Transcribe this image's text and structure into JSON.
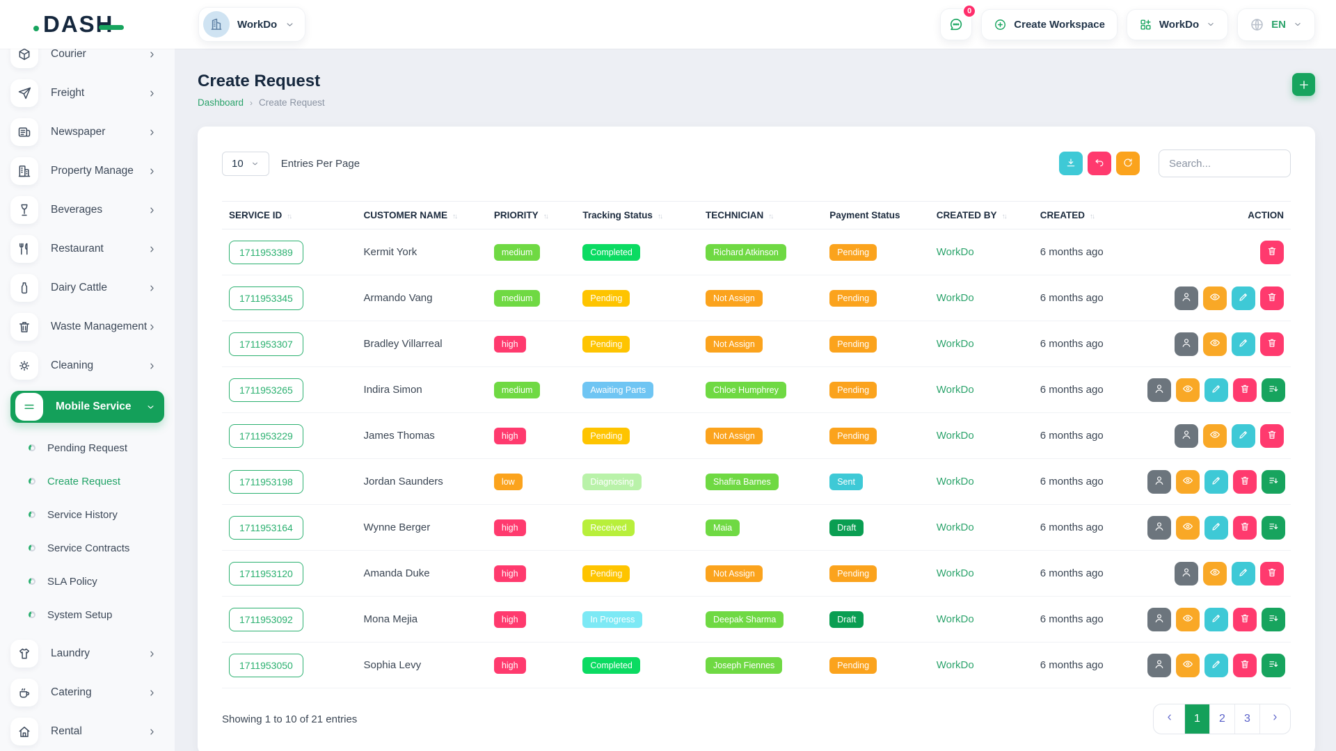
{
  "brand": {
    "logo_text": "DASH"
  },
  "header": {
    "workspace_switcher": {
      "label": "WorkDo",
      "icon": "building-icon"
    },
    "messages_badge": "0",
    "create_workspace_label": "Create Workspace",
    "workspace_menu_label": "WorkDo",
    "language": "EN"
  },
  "sidebar": {
    "items": [
      {
        "label": "Courier",
        "icon": "courier-icon",
        "clipped": true
      },
      {
        "label": "Freight",
        "icon": "freight-icon"
      },
      {
        "label": "Newspaper",
        "icon": "newspaper-icon"
      },
      {
        "label": "Property Manage",
        "icon": "property-icon"
      },
      {
        "label": "Beverages",
        "icon": "beverages-icon"
      },
      {
        "label": "Restaurant",
        "icon": "restaurant-icon"
      },
      {
        "label": "Dairy Cattle",
        "icon": "dairy-icon"
      },
      {
        "label": "Waste Management",
        "icon": "waste-icon"
      },
      {
        "label": "Cleaning",
        "icon": "cleaning-icon"
      },
      {
        "label": "Mobile Service",
        "icon": "menu-icon",
        "active": true,
        "children": [
          {
            "label": "Pending Request"
          },
          {
            "label": "Create Request",
            "active": true
          },
          {
            "label": "Service History"
          },
          {
            "label": "Service Contracts"
          },
          {
            "label": "SLA Policy"
          },
          {
            "label": "System Setup"
          }
        ]
      },
      {
        "label": "Laundry",
        "icon": "laundry-icon"
      },
      {
        "label": "Catering",
        "icon": "catering-icon"
      },
      {
        "label": "Rental",
        "icon": "rental-icon"
      }
    ]
  },
  "page": {
    "title": "Create Request",
    "breadcrumb": {
      "home": "Dashboard",
      "current": "Create Request"
    }
  },
  "toolbar": {
    "entries_value": "10",
    "entries_label": "Entries Per Page",
    "search_placeholder": "Search...",
    "buttons": [
      {
        "name": "download",
        "color": "#3ec9d6"
      },
      {
        "name": "undo",
        "color": "#ff3a6e"
      },
      {
        "name": "refresh",
        "color": "#fba31d"
      }
    ]
  },
  "table": {
    "columns": [
      {
        "label": "SERVICE ID",
        "sortable": true
      },
      {
        "label": "CUSTOMER NAME",
        "sortable": true
      },
      {
        "label": "PRIORITY",
        "sortable": true
      },
      {
        "label": "Tracking Status",
        "sortable": true
      },
      {
        "label": "TECHNICIAN",
        "sortable": true
      },
      {
        "label": "Payment Status",
        "sortable": false
      },
      {
        "label": "CREATED BY",
        "sortable": true
      },
      {
        "label": "CREATED",
        "sortable": true
      },
      {
        "label": "ACTION",
        "sortable": false
      }
    ],
    "rows": [
      {
        "service_id": "1711953389",
        "customer": "Kermit York",
        "priority": {
          "text": "medium",
          "color": "green"
        },
        "tracking": {
          "text": "Completed",
          "color": "spring"
        },
        "technician": {
          "text": "Richard Atkinson",
          "color": "green"
        },
        "payment": {
          "text": "Pending",
          "color": "orange"
        },
        "created_by": "WorkDo",
        "created": "6 months ago",
        "actions": [
          "trash"
        ]
      },
      {
        "service_id": "1711953345",
        "customer": "Armando Vang",
        "priority": {
          "text": "medium",
          "color": "green"
        },
        "tracking": {
          "text": "Pending",
          "color": "yellow"
        },
        "technician": {
          "text": "Not Assign",
          "color": "orange"
        },
        "payment": {
          "text": "Pending",
          "color": "orange"
        },
        "created_by": "WorkDo",
        "created": "6 months ago",
        "actions": [
          "user",
          "eye",
          "edit",
          "trash"
        ]
      },
      {
        "service_id": "1711953307",
        "customer": "Bradley Villarreal",
        "priority": {
          "text": "high",
          "color": "pink"
        },
        "tracking": {
          "text": "Pending",
          "color": "yellow"
        },
        "technician": {
          "text": "Not Assign",
          "color": "orange"
        },
        "payment": {
          "text": "Pending",
          "color": "orange"
        },
        "created_by": "WorkDo",
        "created": "6 months ago",
        "actions": [
          "user",
          "eye",
          "edit",
          "trash"
        ]
      },
      {
        "service_id": "1711953265",
        "customer": "Indira Simon",
        "priority": {
          "text": "medium",
          "color": "green"
        },
        "tracking": {
          "text": "Awaiting Parts",
          "color": "sky"
        },
        "technician": {
          "text": "Chloe Humphrey",
          "color": "green"
        },
        "payment": {
          "text": "Pending",
          "color": "orange"
        },
        "created_by": "WorkDo",
        "created": "6 months ago",
        "actions": [
          "user",
          "eye",
          "edit",
          "trash",
          "list"
        ]
      },
      {
        "service_id": "1711953229",
        "customer": "James Thomas",
        "priority": {
          "text": "high",
          "color": "pink"
        },
        "tracking": {
          "text": "Pending",
          "color": "yellow"
        },
        "technician": {
          "text": "Not Assign",
          "color": "orange"
        },
        "payment": {
          "text": "Pending",
          "color": "orange"
        },
        "created_by": "WorkDo",
        "created": "6 months ago",
        "actions": [
          "user",
          "eye",
          "edit",
          "trash"
        ]
      },
      {
        "service_id": "1711953198",
        "customer": "Jordan Saunders",
        "priority": {
          "text": "low",
          "color": "orange"
        },
        "tracking": {
          "text": "Diagnosing",
          "color": "pale_green"
        },
        "technician": {
          "text": "Shafira Barnes",
          "color": "green"
        },
        "payment": {
          "text": "Sent",
          "color": "teal"
        },
        "created_by": "WorkDo",
        "created": "6 months ago",
        "actions": [
          "user",
          "eye",
          "edit",
          "trash",
          "list"
        ]
      },
      {
        "service_id": "1711953164",
        "customer": "Wynne Berger",
        "priority": {
          "text": "high",
          "color": "pink"
        },
        "tracking": {
          "text": "Received",
          "color": "lime"
        },
        "technician": {
          "text": "Maia",
          "color": "green"
        },
        "payment": {
          "text": "Draft",
          "color": "dark_green"
        },
        "created_by": "WorkDo",
        "created": "6 months ago",
        "actions": [
          "user",
          "eye",
          "edit",
          "trash",
          "list"
        ]
      },
      {
        "service_id": "1711953120",
        "customer": "Amanda Duke",
        "priority": {
          "text": "high",
          "color": "pink"
        },
        "tracking": {
          "text": "Pending",
          "color": "yellow"
        },
        "technician": {
          "text": "Not Assign",
          "color": "orange"
        },
        "payment": {
          "text": "Pending",
          "color": "orange"
        },
        "created_by": "WorkDo",
        "created": "6 months ago",
        "actions": [
          "user",
          "eye",
          "edit",
          "trash"
        ]
      },
      {
        "service_id": "1711953092",
        "customer": "Mona Mejia",
        "priority": {
          "text": "high",
          "color": "pink"
        },
        "tracking": {
          "text": "In Progress",
          "color": "light_cyan"
        },
        "technician": {
          "text": "Deepak Sharma",
          "color": "green"
        },
        "payment": {
          "text": "Draft",
          "color": "dark_green"
        },
        "created_by": "WorkDo",
        "created": "6 months ago",
        "actions": [
          "user",
          "eye",
          "edit",
          "trash",
          "list"
        ]
      },
      {
        "service_id": "1711953050",
        "customer": "Sophia Levy",
        "priority": {
          "text": "high",
          "color": "pink"
        },
        "tracking": {
          "text": "Completed",
          "color": "spring"
        },
        "technician": {
          "text": "Joseph Fiennes",
          "color": "green"
        },
        "payment": {
          "text": "Pending",
          "color": "orange"
        },
        "created_by": "WorkDo",
        "created": "6 months ago",
        "actions": [
          "user",
          "eye",
          "edit",
          "trash",
          "list"
        ]
      }
    ]
  },
  "footer": {
    "summary": "Showing 1 to 10 of 21 entries",
    "pagination": {
      "pages": [
        "1",
        "2",
        "3"
      ],
      "active": "1"
    }
  },
  "colors": {
    "accent": "#17a45e",
    "accent_text": "#2ba36b",
    "badge": {
      "green": "#6fd943",
      "spring": "#0bdb62",
      "yellow": "#fec400",
      "orange": "#fba31d",
      "sky": "#6fc5f3",
      "pale_green": "#b9f2a9",
      "lime": "#b8ef3b",
      "light_cyan": "#7ce9f5",
      "teal": "#3ec9d6",
      "dark_green": "#0a9e52",
      "pink": "#ff3a6e"
    },
    "action": {
      "user": "#6c757d",
      "eye": "#f9a826",
      "edit": "#3ec9d6",
      "trash": "#ff3a6e",
      "list": "#17a45e"
    },
    "pagination_link": "#5a61c9"
  }
}
